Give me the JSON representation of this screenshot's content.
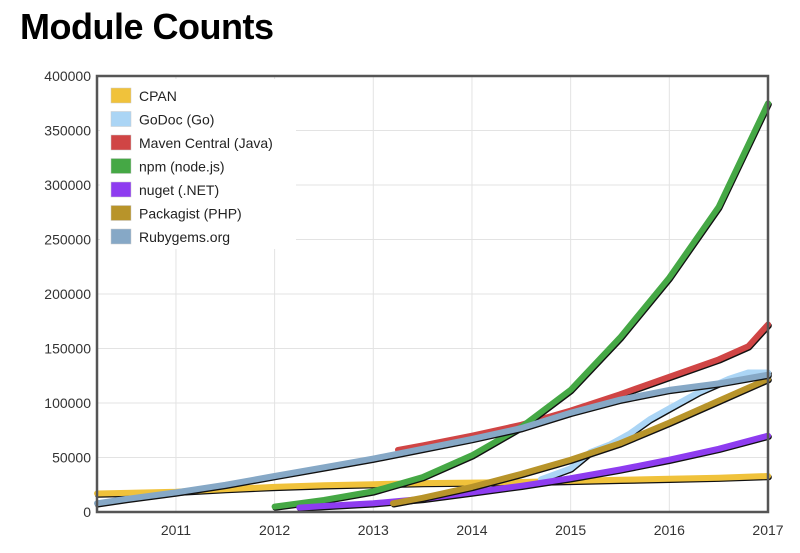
{
  "chart_data": {
    "type": "line",
    "title": "Module Counts",
    "xlabel": "",
    "ylabel": "",
    "xlim": [
      2010.2,
      2017.0
    ],
    "ylim": [
      0,
      400000
    ],
    "x_ticks": [
      "2011",
      "2012",
      "2013",
      "2014",
      "2015",
      "2016",
      "2017"
    ],
    "x_tick_values": [
      2011,
      2012,
      2013,
      2014,
      2015,
      2016,
      2017
    ],
    "y_ticks": [
      "0",
      "50000",
      "100000",
      "150000",
      "200000",
      "250000",
      "300000",
      "350000",
      "400000"
    ],
    "y_tick_values": [
      0,
      50000,
      100000,
      150000,
      200000,
      250000,
      300000,
      350000,
      400000
    ],
    "grid": true,
    "legend_position": "top-left",
    "series": [
      {
        "name": "CPAN",
        "color": "#f0c23b",
        "x": [
          2010.2,
          2010.5,
          2011.0,
          2011.5,
          2012.0,
          2012.5,
          2013.0,
          2013.5,
          2014.0,
          2014.5,
          2015.0,
          2015.5,
          2016.0,
          2016.5,
          2017.0
        ],
        "y": [
          17000,
          17500,
          18500,
          21000,
          23000,
          24500,
          25500,
          26500,
          27000,
          27500,
          28500,
          29500,
          30500,
          31500,
          33000
        ]
      },
      {
        "name": "GoDoc (Go)",
        "color": "#abd5f5",
        "x": [
          2014.7,
          2015.0,
          2015.2,
          2015.4,
          2015.6,
          2015.8,
          2016.0,
          2016.3,
          2016.6,
          2016.8,
          2017.0
        ],
        "y": [
          30000,
          40000,
          55000,
          62000,
          72000,
          85000,
          95000,
          110000,
          122000,
          128000,
          128000
        ]
      },
      {
        "name": "Maven Central (Java)",
        "color": "#d04545",
        "x": [
          2013.25,
          2013.5,
          2014.0,
          2014.5,
          2015.0,
          2015.5,
          2016.0,
          2016.5,
          2016.8,
          2017.0
        ],
        "y": [
          57000,
          61000,
          70000,
          80000,
          93000,
          108000,
          124000,
          140000,
          152000,
          172000
        ]
      },
      {
        "name": "npm (node.js)",
        "color": "#45a845",
        "x": [
          2012.0,
          2012.5,
          2013.0,
          2013.5,
          2014.0,
          2014.5,
          2015.0,
          2015.5,
          2016.0,
          2016.5,
          2017.0
        ],
        "y": [
          5000,
          11000,
          19000,
          32000,
          52000,
          78000,
          112000,
          160000,
          215000,
          280000,
          375000
        ]
      },
      {
        "name": "nuget (.NET)",
        "color": "#8e3cf0",
        "x": [
          2012.25,
          2012.5,
          2013.0,
          2013.5,
          2014.0,
          2014.5,
          2015.0,
          2015.5,
          2016.0,
          2016.5,
          2017.0
        ],
        "y": [
          4000,
          5500,
          8000,
          12000,
          18000,
          24000,
          31000,
          39000,
          48000,
          58000,
          70000
        ]
      },
      {
        "name": "Packagist (PHP)",
        "color": "#b8942a",
        "x": [
          2013.2,
          2013.5,
          2014.0,
          2014.5,
          2015.0,
          2015.5,
          2016.0,
          2016.5,
          2017.0
        ],
        "y": [
          8000,
          13000,
          23000,
          35000,
          48000,
          63000,
          82000,
          102000,
          122000
        ]
      },
      {
        "name": "Rubygems.org",
        "color": "#86a8c6",
        "x": [
          2010.2,
          2010.5,
          2011.0,
          2011.5,
          2012.0,
          2012.5,
          2013.0,
          2013.5,
          2014.0,
          2014.5,
          2015.0,
          2015.5,
          2016.0,
          2016.5,
          2017.0
        ],
        "y": [
          8000,
          12000,
          18000,
          25000,
          33000,
          41000,
          49000,
          58000,
          67000,
          77000,
          91000,
          103000,
          112000,
          118000,
          126000
        ]
      }
    ]
  }
}
